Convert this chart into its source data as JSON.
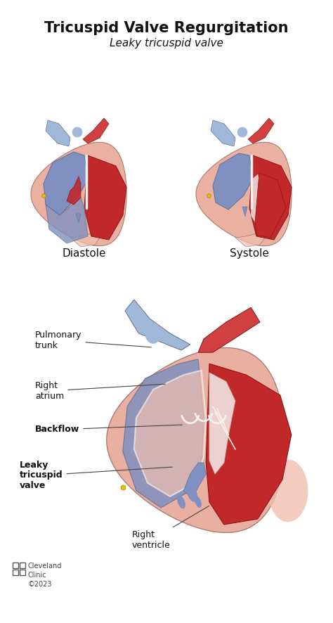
{
  "title": "Tricuspid Valve Regurgitation",
  "subtitle": "Leaky tricuspid valve",
  "title_fontsize": 15,
  "subtitle_fontsize": 11,
  "title_color": "#111111",
  "subtitle_color": "#111111",
  "background_color": "#ffffff",
  "label_diastole": "Diastole",
  "label_systole": "Systole",
  "annotation_fontsize": 9,
  "cc_text": "Cleveland\nClinic\n©2023",
  "cc_fontsize": 7,
  "figsize": [
    4.74,
    8.86
  ],
  "dpi": 100,
  "colors": {
    "heart_pink": "#e8a898",
    "heart_pink_light": "#f0c0b0",
    "blood_red": "#c0282a",
    "blood_red_dark": "#8b1515",
    "blue_chamber": "#8090c0",
    "blue_light": "#a0b8d8",
    "blue_dark": "#607090",
    "wall_white": "#f5f0ee",
    "aorta_red": "#d04040",
    "yellow": "#e8c000",
    "outline": "#806060"
  }
}
